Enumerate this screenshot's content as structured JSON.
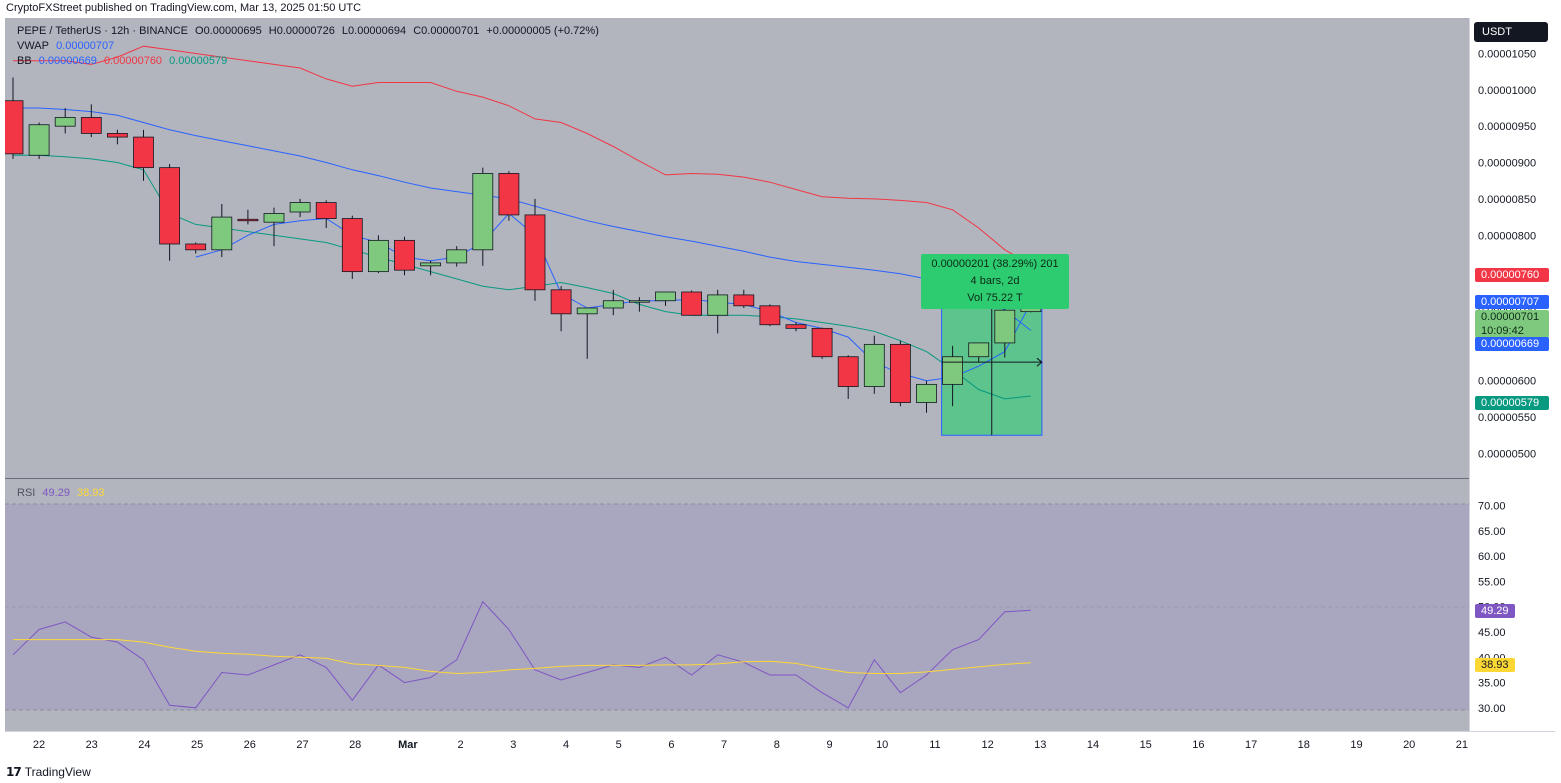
{
  "header": {
    "published": "CryptoFXStreet published on TradingView.com, Mar 13, 2025 01:50 UTC"
  },
  "legend": {
    "symbol": "PEPE / TetherUS · 12h · BINANCE",
    "open": "O0.00000695",
    "high": "H0.00000726",
    "low": "L0.00000694",
    "close": "C0.00000701",
    "change": "+0.00000005 (+0.72%)",
    "vwap_label": "VWAP",
    "vwap_value": "0.00000707",
    "bb_label": "BB",
    "bb_basis": "0.00000669",
    "bb_upper": "0.00000760",
    "bb_lower": "0.00000579",
    "rsi_label": "RSI",
    "rsi_value": "49.29",
    "rsi_ma": "38.93"
  },
  "currency_button": "USDT",
  "price_tags": {
    "bb_upper": "0.00000760",
    "vwap": "0.00000707",
    "last": "0.00000701",
    "countdown": "10:09:42",
    "bb_basis": "0.00000669",
    "bb_lower": "0.00000579",
    "rsi": "49.29",
    "rsi_ma": "38.93"
  },
  "measure": {
    "line1": "0.00000201 (38.29%) 201",
    "line2": "4 bars, 2d",
    "line3": "Vol 75.22 T"
  },
  "footer": {
    "brand": "TradingView"
  },
  "colors": {
    "up": "#7fc97f",
    "down": "#f23645",
    "bb_upper": "#f23645",
    "bb_basis": "#2962ff",
    "bb_lower": "#089981",
    "vwap": "#2962ff",
    "rsi": "#7e57c2",
    "rsi_ma": "#fdd835",
    "background": "#b2b5be",
    "rsi_bg": "#a9a6c0",
    "measure": "#2ecc71"
  },
  "chart_data": [
    {
      "type": "candlestick",
      "x_labels": [
        "22",
        "23",
        "24",
        "25",
        "26",
        "27",
        "28",
        "Mar",
        "2",
        "3",
        "4",
        "5",
        "6",
        "7",
        "8",
        "9",
        "10",
        "11",
        "12",
        "13",
        "14",
        "15",
        "16",
        "17",
        "18",
        "19",
        "20",
        "21"
      ],
      "y_ticks": [
        "0.00000500",
        "0.00000550",
        "0.00000600",
        "0.00000650",
        "0.00000700",
        "0.00000750",
        "0.00000800",
        "0.00000850",
        "0.00000900",
        "0.00000950",
        "0.00001000",
        "0.00001050"
      ],
      "ylim": [
        4.8e-06,
        1.085e-05
      ],
      "candles": [
        {
          "o": 9.85e-06,
          "h": 1.017e-05,
          "l": 9.05e-06,
          "c": 9.12e-06
        },
        {
          "o": 9.1e-06,
          "h": 9.55e-06,
          "l": 9.05e-06,
          "c": 9.52e-06
        },
        {
          "o": 9.5e-06,
          "h": 9.75e-06,
          "l": 9.4e-06,
          "c": 9.62e-06
        },
        {
          "o": 9.62e-06,
          "h": 9.8e-06,
          "l": 9.35e-06,
          "c": 9.4e-06
        },
        {
          "o": 9.4e-06,
          "h": 9.45e-06,
          "l": 9.25e-06,
          "c": 9.35e-06
        },
        {
          "o": 9.35e-06,
          "h": 9.45e-06,
          "l": 8.75e-06,
          "c": 8.93e-06
        },
        {
          "o": 8.93e-06,
          "h": 8.98e-06,
          "l": 7.65e-06,
          "c": 7.88e-06
        },
        {
          "o": 7.88e-06,
          "h": 7.9e-06,
          "l": 7.75e-06,
          "c": 7.8e-06
        },
        {
          "o": 7.8e-06,
          "h": 8.43e-06,
          "l": 7.7e-06,
          "c": 8.25e-06
        },
        {
          "o": 8.22e-06,
          "h": 8.35e-06,
          "l": 8.15e-06,
          "c": 8.2e-06
        },
        {
          "o": 8.18e-06,
          "h": 8.38e-06,
          "l": 7.85e-06,
          "c": 8.3e-06
        },
        {
          "o": 8.32e-06,
          "h": 8.5e-06,
          "l": 8.25e-06,
          "c": 8.45e-06
        },
        {
          "o": 8.45e-06,
          "h": 8.48e-06,
          "l": 8.1e-06,
          "c": 8.23e-06
        },
        {
          "o": 8.23e-06,
          "h": 8.27e-06,
          "l": 7.4e-06,
          "c": 7.5e-06
        },
        {
          "o": 7.5e-06,
          "h": 8e-06,
          "l": 7.48e-06,
          "c": 7.93e-06
        },
        {
          "o": 7.93e-06,
          "h": 7.98e-06,
          "l": 7.45e-06,
          "c": 7.52e-06
        },
        {
          "o": 7.58e-06,
          "h": 7.65e-06,
          "l": 7.45e-06,
          "c": 7.62e-06
        },
        {
          "o": 7.62e-06,
          "h": 7.85e-06,
          "l": 7.57e-06,
          "c": 7.8e-06
        },
        {
          "o": 7.8e-06,
          "h": 8.93e-06,
          "l": 7.58e-06,
          "c": 8.85e-06
        },
        {
          "o": 8.85e-06,
          "h": 8.88e-06,
          "l": 8.2e-06,
          "c": 8.28e-06
        },
        {
          "o": 8.28e-06,
          "h": 8.5e-06,
          "l": 7.1e-06,
          "c": 7.25e-06
        },
        {
          "o": 7.25e-06,
          "h": 7.3e-06,
          "l": 6.68e-06,
          "c": 6.92e-06
        },
        {
          "o": 6.92e-06,
          "h": 7e-06,
          "l": 6.3e-06,
          "c": 7e-06
        },
        {
          "o": 7e-06,
          "h": 7.25e-06,
          "l": 6.9e-06,
          "c": 7.1e-06
        },
        {
          "o": 7.1e-06,
          "h": 7.15e-06,
          "l": 6.95e-06,
          "c": 7.1e-06
        },
        {
          "o": 7.1e-06,
          "h": 7.18e-06,
          "l": 7.03e-06,
          "c": 7.22e-06
        },
        {
          "o": 7.22e-06,
          "h": 7.24e-06,
          "l": 6.9e-06,
          "c": 6.9e-06
        },
        {
          "o": 6.9e-06,
          "h": 7.25e-06,
          "l": 6.65e-06,
          "c": 7.18e-06
        },
        {
          "o": 7.18e-06,
          "h": 7.25e-06,
          "l": 7e-06,
          "c": 7.03e-06
        },
        {
          "o": 7.03e-06,
          "h": 7.05e-06,
          "l": 6.75e-06,
          "c": 6.77e-06
        },
        {
          "o": 6.77e-06,
          "h": 6.8e-06,
          "l": 6.68e-06,
          "c": 6.72e-06
        },
        {
          "o": 6.72e-06,
          "h": 6.73e-06,
          "l": 6.3e-06,
          "c": 6.33e-06
        },
        {
          "o": 6.33e-06,
          "h": 6.35e-06,
          "l": 5.75e-06,
          "c": 5.92e-06
        },
        {
          "o": 5.92e-06,
          "h": 6.62e-06,
          "l": 5.82e-06,
          "c": 6.5e-06
        },
        {
          "o": 6.5e-06,
          "h": 6.55e-06,
          "l": 5.65e-06,
          "c": 5.7e-06
        },
        {
          "o": 5.7e-06,
          "h": 6e-06,
          "l": 5.56e-06,
          "c": 5.95e-06
        },
        {
          "o": 5.95e-06,
          "h": 6.48e-06,
          "l": 5.65e-06,
          "c": 6.33e-06
        },
        {
          "o": 6.33e-06,
          "h": 6.52e-06,
          "l": 6.25e-06,
          "c": 6.52e-06
        },
        {
          "o": 6.52e-06,
          "h": 7e-06,
          "l": 6.32e-06,
          "c": 6.97e-06
        },
        {
          "o": 6.95e-06,
          "h": 7.26e-06,
          "l": 6.94e-06,
          "c": 7.01e-06
        }
      ],
      "bb_upper": [
        1.04e-05,
        1.04e-05,
        1.04e-05,
        1.035e-05,
        1.045e-05,
        1.06e-05,
        1.055e-05,
        1.05e-05,
        1.045e-05,
        1.04e-05,
        1.035e-05,
        1.03e-05,
        1.015e-05,
        1.005e-05,
        1.01e-05,
        1.01e-05,
        1.01e-05,
        9.98e-06,
        9.9e-06,
        9.78e-06,
        9.6e-06,
        9.55e-06,
        9.4e-06,
        9.22e-06,
        9.02e-06,
        8.83e-06,
        8.85e-06,
        8.84e-06,
        8.8e-06,
        8.73e-06,
        8.63e-06,
        8.53e-06,
        8.51e-06,
        8.5e-06,
        8.48e-06,
        8.45e-06,
        8.35e-06,
        8.1e-06,
        7.8e-06,
        7.6e-06
      ],
      "bb_basis": [
        9.75e-06,
        9.75e-06,
        9.73e-06,
        9.7e-06,
        9.65e-06,
        9.55e-06,
        9.45e-06,
        9.37e-06,
        9.3e-06,
        9.23e-06,
        9.16e-06,
        9.09e-06,
        9e-06,
        8.9e-06,
        8.82e-06,
        8.73e-06,
        8.65e-06,
        8.6e-06,
        8.55e-06,
        8.5e-06,
        8.4e-06,
        8.3e-06,
        8.2e-06,
        8.12e-06,
        8.05e-06,
        7.98e-06,
        7.92e-06,
        7.85e-06,
        7.78e-06,
        7.7e-06,
        7.64e-06,
        7.6e-06,
        7.56e-06,
        7.52e-06,
        7.47e-06,
        7.4e-06,
        7.33e-06,
        7.2e-06,
        6.97e-06,
        6.69e-06
      ],
      "bb_lower": [
        9.1e-06,
        9.1e-06,
        9.08e-06,
        9.05e-06,
        9e-06,
        8.9e-06,
        8.3e-06,
        8.15e-06,
        8.1e-06,
        8.05e-06,
        8e-06,
        7.95e-06,
        7.9e-06,
        7.8e-06,
        7.7e-06,
        7.6e-06,
        7.5e-06,
        7.4e-06,
        7.3e-06,
        7.25e-06,
        7.3e-06,
        7.35e-06,
        7.28e-06,
        7.2e-06,
        7.05e-06,
        6.95e-06,
        6.9e-06,
        6.9e-06,
        6.9e-06,
        6.88e-06,
        6.85e-06,
        6.8e-06,
        6.75e-06,
        6.68e-06,
        6.55e-06,
        6.4e-06,
        6.15e-06,
        5.88e-06,
        5.75e-06,
        5.79e-06
      ],
      "vwap": [
        null,
        null,
        null,
        null,
        null,
        null,
        null,
        7.7e-06,
        7.8e-06,
        8e-06,
        8.15e-06,
        8.2e-06,
        8.23e-06,
        8e-06,
        7.9e-06,
        7.7e-06,
        7.65e-06,
        7.7e-06,
        7.9e-06,
        8.3e-06,
        8e-06,
        7.2e-06,
        7e-06,
        7.05e-06,
        7.1e-06,
        7.1e-06,
        7.12e-06,
        7.08e-06,
        7.05e-06,
        6.95e-06,
        6.8e-06,
        6.72e-06,
        6.6e-06,
        6.25e-06,
        6.1e-06,
        6e-06,
        6.05e-06,
        6.2e-06,
        6.4e-06,
        7.07e-06
      ]
    },
    {
      "type": "line",
      "title": "RSI",
      "y_ticks": [
        "30.00",
        "35.00",
        "40.00",
        "45.00",
        "50.00",
        "55.00",
        "60.00",
        "65.00",
        "70.00"
      ],
      "ylim": [
        27,
        72.5
      ],
      "series": [
        {
          "name": "RSI",
          "values": [
            40.5,
            45.5,
            47,
            44,
            43,
            39.5,
            30.5,
            30,
            37,
            36.5,
            38.5,
            40.5,
            38,
            31.5,
            38.5,
            35,
            36,
            39.5,
            51,
            45.5,
            37.5,
            35.5,
            37,
            38.5,
            38,
            40,
            36.5,
            40.5,
            39,
            36.5,
            36.5,
            33,
            30,
            39.5,
            33,
            36.5,
            41.5,
            43.5,
            49,
            49.29
          ]
        },
        {
          "name": "RSI-based MA",
          "values": [
            43.5,
            43.5,
            43.5,
            43.5,
            43.5,
            43,
            42,
            41.2,
            40.8,
            40.6,
            40.2,
            40,
            39.8,
            38.7,
            38.4,
            38,
            37.2,
            36.8,
            37,
            37.5,
            37.8,
            38.2,
            38.4,
            38.4,
            38.4,
            38.5,
            38.5,
            38.7,
            39.1,
            39.2,
            38.8,
            37.8,
            37,
            36.8,
            36.8,
            37.1,
            37.6,
            38.1,
            38.6,
            38.93
          ]
        }
      ]
    }
  ]
}
